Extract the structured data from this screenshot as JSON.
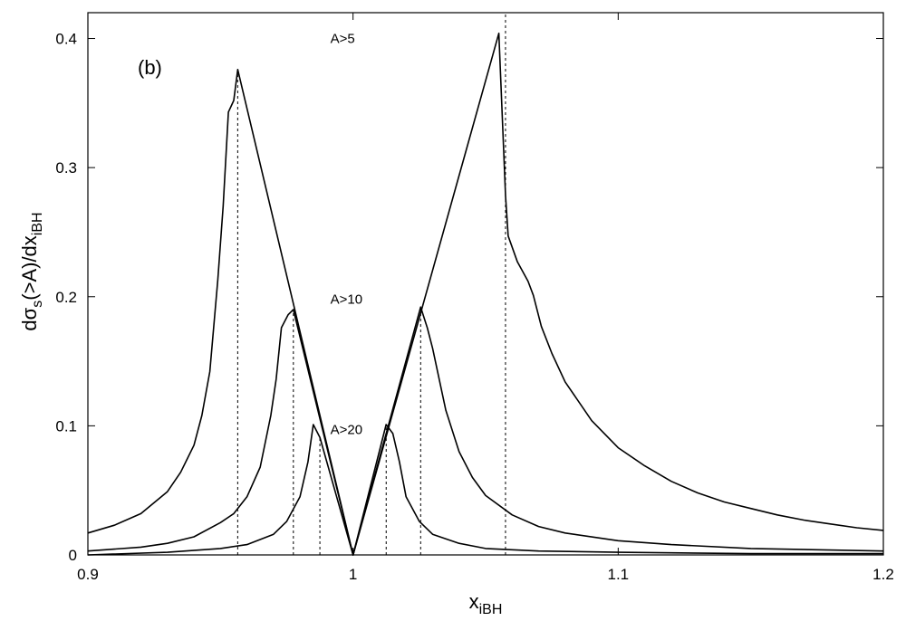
{
  "chart_data": {
    "type": "line",
    "panel_label": "(b)",
    "xlabel": {
      "main": "x",
      "sub": "iBH"
    },
    "ylabel": {
      "p1": "dσ",
      "s1": "s",
      "p2": "(>A)/dx",
      "s2": "iBH"
    },
    "xlim": [
      0.9,
      1.2
    ],
    "ylim": [
      0,
      0.42
    ],
    "xticks": [
      0.9,
      1,
      1.1,
      1.2
    ],
    "xtick_labels": [
      "0.9",
      "1",
      "1.1",
      "1.2"
    ],
    "yticks": [
      0,
      0.1,
      0.2,
      0.3,
      0.4
    ],
    "ytick_labels": [
      "0",
      "0.1",
      "0.2",
      "0.3",
      "0.4"
    ],
    "grid": false,
    "legend": "none",
    "annotations": [
      {
        "text": "A>5",
        "x": 1.0,
        "y": 0.4
      },
      {
        "text": "A>10",
        "x": 1.0,
        "y": 0.198
      },
      {
        "text": "A>20",
        "x": 1.0,
        "y": 0.097
      }
    ],
    "series": [
      {
        "points": [
          [
            0.9,
            0.017
          ],
          [
            0.91,
            0.023
          ],
          [
            0.92,
            0.032
          ],
          [
            0.93,
            0.049
          ],
          [
            0.935,
            0.064
          ],
          [
            0.94,
            0.085
          ],
          [
            0.943,
            0.108
          ],
          [
            0.946,
            0.142
          ],
          [
            0.949,
            0.213
          ],
          [
            0.951,
            0.27
          ],
          [
            0.953,
            0.343
          ],
          [
            0.955,
            0.352
          ],
          [
            0.9565,
            0.376
          ],
          [
            1.0,
            0.0
          ],
          [
            1.055,
            0.404
          ],
          [
            1.0575,
            0.278
          ],
          [
            1.0585,
            0.247
          ],
          [
            1.062,
            0.227
          ],
          [
            1.066,
            0.212
          ],
          [
            1.068,
            0.201
          ],
          [
            1.071,
            0.177
          ],
          [
            1.075,
            0.156
          ],
          [
            1.08,
            0.134
          ],
          [
            1.09,
            0.104
          ],
          [
            1.1,
            0.083
          ],
          [
            1.11,
            0.069
          ],
          [
            1.12,
            0.057
          ],
          [
            1.13,
            0.048
          ],
          [
            1.14,
            0.041
          ],
          [
            1.15,
            0.036
          ],
          [
            1.16,
            0.031
          ],
          [
            1.17,
            0.027
          ],
          [
            1.18,
            0.024
          ],
          [
            1.19,
            0.021
          ],
          [
            1.2,
            0.019
          ]
        ]
      },
      {
        "points": [
          [
            0.9,
            0.003
          ],
          [
            0.92,
            0.006
          ],
          [
            0.93,
            0.009
          ],
          [
            0.94,
            0.014
          ],
          [
            0.95,
            0.025
          ],
          [
            0.955,
            0.032
          ],
          [
            0.96,
            0.045
          ],
          [
            0.965,
            0.068
          ],
          [
            0.969,
            0.108
          ],
          [
            0.971,
            0.136
          ],
          [
            0.973,
            0.176
          ],
          [
            0.9755,
            0.186
          ],
          [
            0.9775,
            0.19
          ],
          [
            1.0,
            0.0
          ],
          [
            1.0255,
            0.192
          ],
          [
            1.028,
            0.176
          ],
          [
            1.03,
            0.16
          ],
          [
            1.035,
            0.112
          ],
          [
            1.04,
            0.08
          ],
          [
            1.045,
            0.06
          ],
          [
            1.05,
            0.046
          ],
          [
            1.06,
            0.031
          ],
          [
            1.07,
            0.022
          ],
          [
            1.08,
            0.017
          ],
          [
            1.1,
            0.011
          ],
          [
            1.12,
            0.008
          ],
          [
            1.15,
            0.005
          ],
          [
            1.2,
            0.003
          ]
        ]
      },
      {
        "points": [
          [
            0.9,
            0.0
          ],
          [
            0.93,
            0.002
          ],
          [
            0.95,
            0.005
          ],
          [
            0.96,
            0.008
          ],
          [
            0.97,
            0.016
          ],
          [
            0.975,
            0.026
          ],
          [
            0.98,
            0.045
          ],
          [
            0.983,
            0.072
          ],
          [
            0.985,
            0.101
          ],
          [
            0.9875,
            0.091
          ],
          [
            1.0,
            0.0
          ],
          [
            1.0125,
            0.101
          ],
          [
            1.015,
            0.094
          ],
          [
            1.0175,
            0.072
          ],
          [
            1.02,
            0.045
          ],
          [
            1.025,
            0.026
          ],
          [
            1.03,
            0.016
          ],
          [
            1.04,
            0.009
          ],
          [
            1.05,
            0.005
          ],
          [
            1.07,
            0.003
          ],
          [
            1.1,
            0.002
          ],
          [
            1.15,
            0.001
          ],
          [
            1.2,
            0.001
          ]
        ]
      }
    ],
    "vertical_markers": [
      {
        "x": 0.9565,
        "y": 0.376
      },
      {
        "x": 0.9775,
        "y": 0.19
      },
      {
        "x": 0.9875,
        "y": 0.091
      },
      {
        "x": 1.0125,
        "y": 0.101
      },
      {
        "x": 1.0255,
        "y": 0.192
      },
      {
        "x": 1.0575,
        "y": 0.42
      }
    ]
  }
}
